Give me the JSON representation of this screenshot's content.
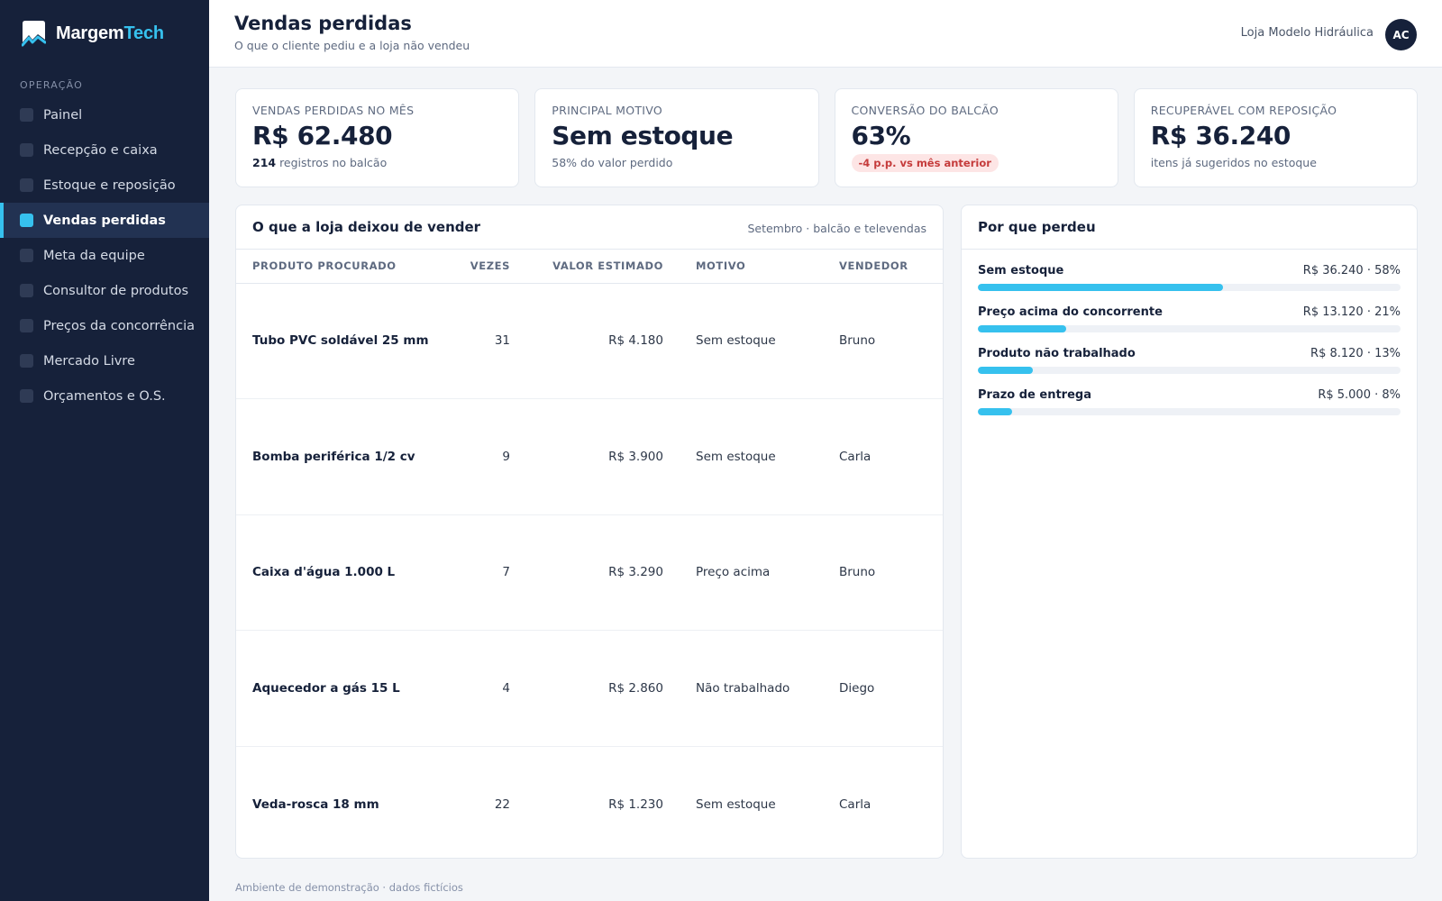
{
  "brand": {
    "name_part1": "Margem",
    "name_part2": "Tech"
  },
  "sidebar": {
    "section_label": "OPERAÇÃO",
    "items": [
      {
        "label": "Painel",
        "active": false
      },
      {
        "label": "Recepção e caixa",
        "active": false
      },
      {
        "label": "Estoque e reposição",
        "active": false
      },
      {
        "label": "Vendas perdidas",
        "active": true
      },
      {
        "label": "Meta da equipe",
        "active": false
      },
      {
        "label": "Consultor de produtos",
        "active": false
      },
      {
        "label": "Preços da concorrência",
        "active": false
      },
      {
        "label": "Mercado Livre",
        "active": false
      },
      {
        "label": "Orçamentos e O.S.",
        "active": false
      }
    ]
  },
  "header": {
    "title": "Vendas perdidas",
    "subtitle": "O que o cliente pediu e a loja não vendeu",
    "store": "Loja Modelo Hidráulica",
    "avatar_initials": "AC"
  },
  "kpis": [
    {
      "label": "VENDAS PERDIDAS NO MÊS",
      "value": "R$ 62.480",
      "sub_strong": "214",
      "sub": " registros no balcão"
    },
    {
      "label": "PRINCIPAL MOTIVO",
      "value": "Sem estoque",
      "sub": "58% do valor perdido"
    },
    {
      "label": "CONVERSÃO DO BALCÃO",
      "value": "63%",
      "badge": "-4 p.p. vs mês anterior"
    },
    {
      "label": "RECUPERÁVEL COM REPOSIÇÃO",
      "value": "R$ 36.240",
      "sub": "itens já sugeridos no estoque"
    }
  ],
  "table_panel": {
    "title": "O que a loja deixou de vender",
    "meta": "Setembro · balcão e televendas",
    "columns": [
      "PRODUTO PROCURADO",
      "VEZES",
      "VALOR ESTIMADO",
      "MOTIVO",
      "VENDEDOR"
    ],
    "rows": [
      {
        "product": "Tubo PVC soldável 25 mm",
        "times": "31",
        "value": "R$ 4.180",
        "reason": "Sem estoque",
        "seller": "Bruno"
      },
      {
        "product": "Bomba periférica 1/2 cv",
        "times": "9",
        "value": "R$ 3.900",
        "reason": "Sem estoque",
        "seller": "Carla"
      },
      {
        "product": "Caixa d'água 1.000 L",
        "times": "7",
        "value": "R$ 3.290",
        "reason": "Preço acima",
        "seller": "Bruno"
      },
      {
        "product": "Aquecedor a gás 15 L",
        "times": "4",
        "value": "R$ 2.860",
        "reason": "Não trabalhado",
        "seller": "Diego"
      },
      {
        "product": "Veda-rosca 18 mm",
        "times": "22",
        "value": "R$ 1.230",
        "reason": "Sem estoque",
        "seller": "Carla"
      }
    ]
  },
  "reasons_panel": {
    "title": "Por que perdeu",
    "items": [
      {
        "label": "Sem estoque",
        "value": "R$ 36.240 · 58%",
        "share": 0.58
      },
      {
        "label": "Preço acima do concorrente",
        "value": "R$ 13.120 · 21%",
        "share": 0.21
      },
      {
        "label": "Produto não trabalhado",
        "value": "R$ 8.120 · 13%",
        "share": 0.13
      },
      {
        "label": "Prazo de entrega",
        "value": "R$ 5.000 · 8%",
        "share": 0.08
      }
    ],
    "bar_color": "#36c1ee"
  },
  "footer": "Ambiente de demonstração · dados fictícios"
}
